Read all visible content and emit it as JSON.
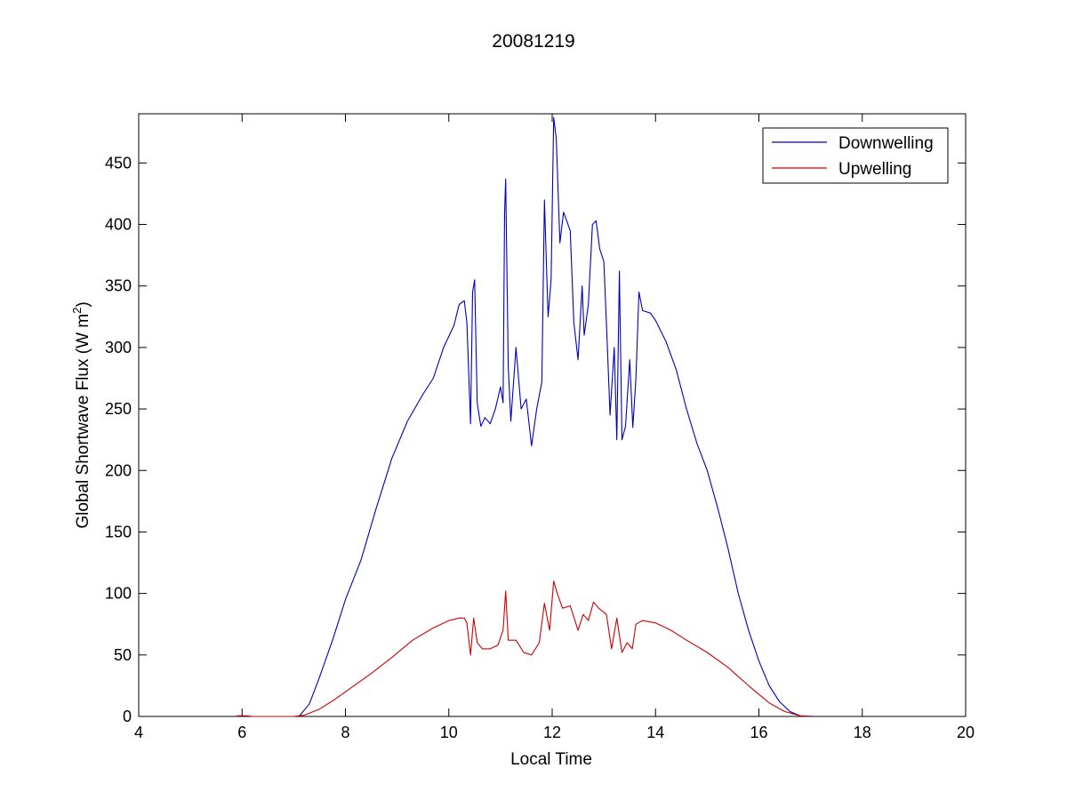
{
  "chart_data": {
    "type": "line",
    "title": "20081219",
    "xlabel": "Local Time",
    "ylabel_main": "Global Shortwave Flux (W m",
    "ylabel_sup": "2",
    "ylabel_end": ")",
    "xlim": [
      4,
      20
    ],
    "ylim": [
      0,
      490
    ],
    "xticks": [
      4,
      6,
      8,
      10,
      12,
      14,
      16,
      18,
      20
    ],
    "yticks": [
      0,
      50,
      100,
      150,
      200,
      250,
      300,
      350,
      400,
      450
    ],
    "grid": false,
    "legend_position": "top-right",
    "series": [
      {
        "name": "Downwelling",
        "color": "#0000bb",
        "points": [
          [
            7.1,
            0
          ],
          [
            7.3,
            10
          ],
          [
            7.5,
            32
          ],
          [
            7.75,
            62
          ],
          [
            8.0,
            95
          ],
          [
            8.3,
            127
          ],
          [
            8.6,
            170
          ],
          [
            8.9,
            210
          ],
          [
            9.2,
            240
          ],
          [
            9.5,
            262
          ],
          [
            9.7,
            275
          ],
          [
            9.9,
            300
          ],
          [
            10.1,
            318
          ],
          [
            10.2,
            335
          ],
          [
            10.3,
            338
          ],
          [
            10.35,
            320
          ],
          [
            10.42,
            238
          ],
          [
            10.46,
            345
          ],
          [
            10.5,
            355
          ],
          [
            10.55,
            255
          ],
          [
            10.62,
            236
          ],
          [
            10.7,
            243
          ],
          [
            10.8,
            238
          ],
          [
            10.9,
            250
          ],
          [
            11.0,
            268
          ],
          [
            11.05,
            255
          ],
          [
            11.08,
            410
          ],
          [
            11.1,
            437
          ],
          [
            11.15,
            285
          ],
          [
            11.2,
            240
          ],
          [
            11.3,
            300
          ],
          [
            11.4,
            250
          ],
          [
            11.5,
            258
          ],
          [
            11.6,
            220
          ],
          [
            11.7,
            250
          ],
          [
            11.8,
            272
          ],
          [
            11.85,
            420
          ],
          [
            11.92,
            325
          ],
          [
            11.98,
            355
          ],
          [
            12.03,
            487
          ],
          [
            12.08,
            470
          ],
          [
            12.15,
            385
          ],
          [
            12.22,
            410
          ],
          [
            12.35,
            395
          ],
          [
            12.42,
            320
          ],
          [
            12.5,
            290
          ],
          [
            12.58,
            350
          ],
          [
            12.62,
            310
          ],
          [
            12.7,
            335
          ],
          [
            12.78,
            400
          ],
          [
            12.85,
            403
          ],
          [
            12.92,
            380
          ],
          [
            13.0,
            370
          ],
          [
            13.05,
            320
          ],
          [
            13.12,
            245
          ],
          [
            13.2,
            300
          ],
          [
            13.25,
            225
          ],
          [
            13.3,
            362
          ],
          [
            13.35,
            225
          ],
          [
            13.42,
            236
          ],
          [
            13.5,
            290
          ],
          [
            13.56,
            235
          ],
          [
            13.62,
            275
          ],
          [
            13.68,
            345
          ],
          [
            13.75,
            330
          ],
          [
            13.9,
            328
          ],
          [
            14.0,
            322
          ],
          [
            14.2,
            305
          ],
          [
            14.4,
            282
          ],
          [
            14.6,
            250
          ],
          [
            14.8,
            222
          ],
          [
            15.0,
            200
          ],
          [
            15.2,
            170
          ],
          [
            15.4,
            137
          ],
          [
            15.6,
            100
          ],
          [
            15.8,
            70
          ],
          [
            16.0,
            45
          ],
          [
            16.2,
            25
          ],
          [
            16.4,
            12
          ],
          [
            16.6,
            4
          ],
          [
            16.8,
            0.5
          ],
          [
            17.1,
            0
          ]
        ]
      },
      {
        "name": "Upwelling",
        "color": "#cc0000",
        "points": [
          [
            5.9,
            0.5
          ],
          [
            6.1,
            0.5
          ],
          [
            6.2,
            0
          ],
          [
            7.0,
            0
          ],
          [
            7.2,
            1
          ],
          [
            7.5,
            6
          ],
          [
            7.8,
            14
          ],
          [
            8.1,
            23
          ],
          [
            8.5,
            35
          ],
          [
            8.9,
            48
          ],
          [
            9.3,
            62
          ],
          [
            9.7,
            72
          ],
          [
            10.0,
            78
          ],
          [
            10.2,
            80
          ],
          [
            10.3,
            80
          ],
          [
            10.35,
            76
          ],
          [
            10.42,
            50
          ],
          [
            10.48,
            80
          ],
          [
            10.55,
            60
          ],
          [
            10.65,
            55
          ],
          [
            10.8,
            55
          ],
          [
            10.95,
            58
          ],
          [
            11.05,
            70
          ],
          [
            11.1,
            102
          ],
          [
            11.15,
            62
          ],
          [
            11.3,
            62
          ],
          [
            11.45,
            52
          ],
          [
            11.6,
            50
          ],
          [
            11.75,
            60
          ],
          [
            11.85,
            92
          ],
          [
            11.95,
            70
          ],
          [
            12.03,
            110
          ],
          [
            12.1,
            100
          ],
          [
            12.2,
            88
          ],
          [
            12.35,
            90
          ],
          [
            12.5,
            70
          ],
          [
            12.6,
            83
          ],
          [
            12.7,
            78
          ],
          [
            12.8,
            93
          ],
          [
            12.9,
            88
          ],
          [
            13.05,
            83
          ],
          [
            13.15,
            55
          ],
          [
            13.25,
            80
          ],
          [
            13.35,
            52
          ],
          [
            13.45,
            60
          ],
          [
            13.55,
            55
          ],
          [
            13.62,
            75
          ],
          [
            13.75,
            78
          ],
          [
            14.0,
            76
          ],
          [
            14.3,
            70
          ],
          [
            14.6,
            62
          ],
          [
            15.0,
            52
          ],
          [
            15.4,
            40
          ],
          [
            15.8,
            25
          ],
          [
            16.2,
            11
          ],
          [
            16.5,
            4
          ],
          [
            16.8,
            0.5
          ],
          [
            17.0,
            0
          ]
        ]
      }
    ]
  }
}
